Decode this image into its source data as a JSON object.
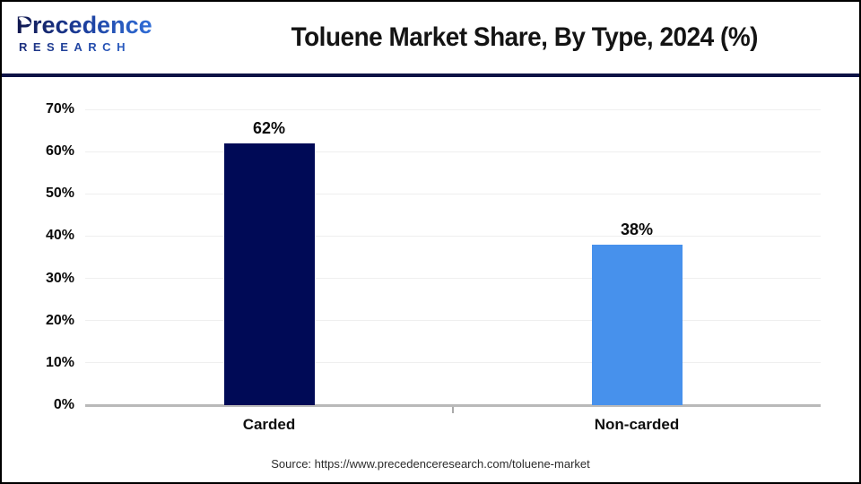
{
  "header": {
    "logo": {
      "line1": "Precedence",
      "line2": "RESEARCH"
    },
    "title": "Toluene Market Share, By Type, 2024 (%)"
  },
  "chart_data": {
    "type": "bar",
    "title": "Toluene Market Share, By Type, 2024 (%)",
    "categories": [
      "Carded",
      "Non-carded"
    ],
    "values": [
      62,
      38
    ],
    "value_labels": [
      "62%",
      "38%"
    ],
    "bar_colors": [
      "#000a56",
      "#4791ec"
    ],
    "xlabel": "",
    "ylabel": "",
    "ylim": [
      0,
      70
    ],
    "ytick_step": 10,
    "ytick_labels": [
      "0%",
      "10%",
      "20%",
      "30%",
      "40%",
      "50%",
      "60%",
      "70%"
    ],
    "grid": true,
    "legend": "none"
  },
  "footer": {
    "source": "Source: https://www.precedenceresearch.com/toluene-market"
  },
  "colors": {
    "header_divider": "#0d1245",
    "gridline": "#efefef",
    "axis_line": "#b9b9b9",
    "title_text": "#141414",
    "page_border": "#000000"
  }
}
